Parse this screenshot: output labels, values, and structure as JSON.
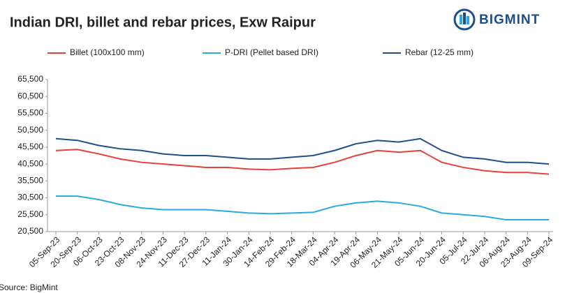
{
  "chart_data": {
    "type": "line",
    "title": "Indian DRI, billet and rebar prices, Exw Raipur",
    "brand": "BIGMINT",
    "source": "Source: BigMint",
    "categories": [
      "05-Sep-23",
      "20-Sep-23",
      "06-Oct-23",
      "23-Oct-23",
      "08-Nov-23",
      "24-Nov-23",
      "11-Dec-23",
      "27-Dec-23",
      "11-Jan-24",
      "30-Jan-24",
      "14-Feb-24",
      "29-Feb-24",
      "18-Mar-24",
      "04-Apr-24",
      "19-Apr-24",
      "06-May-24",
      "21-May-24",
      "05-Jun-24",
      "20-Jun-24",
      "05-Jul-24",
      "22-Jul-24",
      "06-Aug-24",
      "23-Aug-24",
      "09-Sep-24"
    ],
    "series": [
      {
        "name": "Billet (100x100 mm)",
        "color": "#e8403a",
        "values": [
          44500,
          44800,
          43500,
          42000,
          41000,
          40500,
          40000,
          39500,
          39500,
          39000,
          38800,
          39200,
          39500,
          41000,
          43000,
          44500,
          44000,
          44500,
          41000,
          39500,
          38500,
          38000,
          38000,
          37500
        ]
      },
      {
        "name": "P-DRI (Pellet based DRI)",
        "color": "#29aae1",
        "values": [
          31000,
          31000,
          30000,
          28500,
          27500,
          27000,
          27000,
          27000,
          26500,
          26000,
          25800,
          26000,
          26200,
          28000,
          29000,
          29500,
          29000,
          28000,
          26000,
          25500,
          25000,
          24000,
          24000,
          24000
        ]
      },
      {
        "name": "Rebar (12-25 mm)",
        "color": "#1f4e8c",
        "values": [
          48000,
          47500,
          46000,
          45000,
          44500,
          43500,
          43000,
          43000,
          42500,
          42000,
          42000,
          42500,
          43000,
          44500,
          46500,
          47500,
          47000,
          48000,
          44500,
          42500,
          42000,
          41000,
          41000,
          40500
        ]
      }
    ],
    "ylim": [
      20500,
      65500
    ],
    "yticks": [
      {
        "value": 20500,
        "label": "20,500"
      },
      {
        "value": 25500,
        "label": "25,500"
      },
      {
        "value": 30500,
        "label": "30,500"
      },
      {
        "value": 35500,
        "label": "35,500"
      },
      {
        "value": 40500,
        "label": "40,500"
      },
      {
        "value": 45500,
        "label": "45,500"
      },
      {
        "value": 50500,
        "label": "50,500"
      },
      {
        "value": 55500,
        "label": "55,500"
      },
      {
        "value": 60500,
        "label": "60,500"
      },
      {
        "value": 65500,
        "label": "65,500"
      }
    ],
    "grid": false
  }
}
